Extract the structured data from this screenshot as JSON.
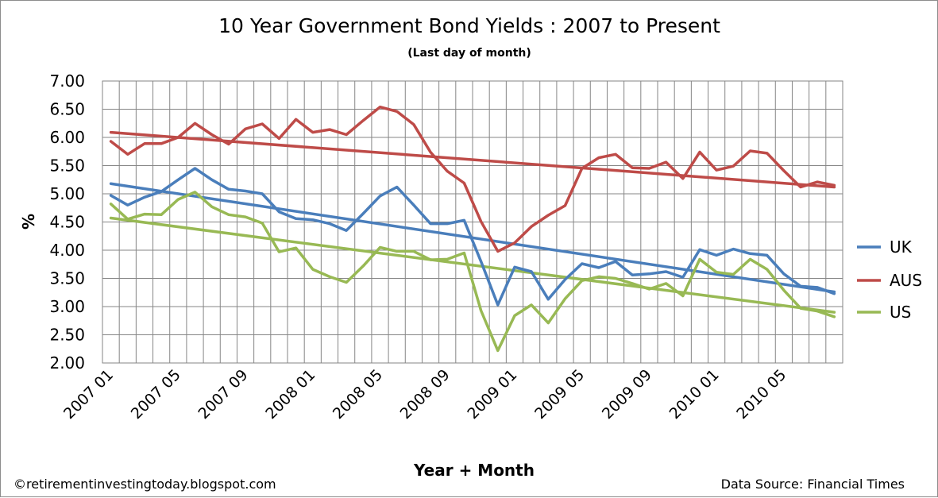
{
  "chart_data": {
    "type": "line",
    "title": "10 Year Government Bond Yields : 2007 to Present",
    "subtitle": "(Last day of month)",
    "xlabel": "Year + Month",
    "ylabel": "%",
    "ylim": [
      2.0,
      7.0
    ],
    "ytick_step": 0.5,
    "yticks": [
      "7.00",
      "6.50",
      "6.00",
      "5.50",
      "5.00",
      "4.50",
      "4.00",
      "3.50",
      "3.00",
      "2.50",
      "2.00"
    ],
    "x_tick_labels": [
      "2007 01",
      "2007 05",
      "2007 09",
      "2008 01",
      "2008 05",
      "2008 09",
      "2009 01",
      "2009 05",
      "2009 09",
      "2010 01",
      "2010 05"
    ],
    "tick_every": 4,
    "x": [
      "2007 01",
      "2007 02",
      "2007 03",
      "2007 04",
      "2007 05",
      "2007 06",
      "2007 07",
      "2007 08",
      "2007 09",
      "2007 10",
      "2007 11",
      "2007 12",
      "2008 01",
      "2008 02",
      "2008 03",
      "2008 04",
      "2008 05",
      "2008 06",
      "2008 07",
      "2008 08",
      "2008 09",
      "2008 10",
      "2008 11",
      "2008 12",
      "2009 01",
      "2009 02",
      "2009 03",
      "2009 04",
      "2009 05",
      "2009 06",
      "2009 07",
      "2009 08",
      "2009 09",
      "2009 10",
      "2009 11",
      "2009 12",
      "2010 01",
      "2010 02",
      "2010 03",
      "2010 04",
      "2010 05",
      "2010 06",
      "2010 07",
      "2010 08"
    ],
    "grid": true,
    "legend": "right",
    "series": [
      {
        "name": "UK",
        "color": "#4a7ebb",
        "values": [
          4.97,
          4.8,
          4.94,
          5.04,
          5.25,
          5.45,
          5.25,
          5.08,
          5.05,
          5.0,
          4.68,
          4.56,
          4.54,
          4.47,
          4.35,
          4.65,
          4.96,
          5.12,
          4.8,
          4.47,
          4.47,
          4.53,
          3.8,
          3.03,
          3.7,
          3.62,
          3.13,
          3.48,
          3.76,
          3.69,
          3.8,
          3.56,
          3.58,
          3.62,
          3.52,
          4.01,
          3.91,
          4.02,
          3.94,
          3.91,
          3.58,
          3.36,
          3.34,
          3.23
        ],
        "trend": [
          5.18,
          3.26
        ]
      },
      {
        "name": "AUS",
        "color": "#be4b48",
        "values": [
          5.93,
          5.7,
          5.89,
          5.89,
          6.0,
          6.25,
          6.05,
          5.88,
          6.15,
          6.24,
          5.98,
          6.32,
          6.09,
          6.14,
          6.05,
          6.3,
          6.54,
          6.46,
          6.23,
          5.74,
          5.4,
          5.19,
          4.51,
          3.98,
          4.13,
          4.42,
          4.62,
          4.79,
          5.45,
          5.64,
          5.7,
          5.46,
          5.45,
          5.56,
          5.27,
          5.74,
          5.42,
          5.49,
          5.76,
          5.72,
          5.41,
          5.12,
          5.21,
          5.15
        ],
        "trend": [
          6.09,
          5.12
        ]
      },
      {
        "name": "US",
        "color": "#98b954",
        "values": [
          4.82,
          4.55,
          4.64,
          4.63,
          4.9,
          5.03,
          4.77,
          4.63,
          4.59,
          4.48,
          3.97,
          4.04,
          3.66,
          3.53,
          3.43,
          3.72,
          4.05,
          3.98,
          3.98,
          3.83,
          3.84,
          3.95,
          2.93,
          2.22,
          2.84,
          3.03,
          2.71,
          3.14,
          3.46,
          3.53,
          3.5,
          3.41,
          3.31,
          3.41,
          3.19,
          3.84,
          3.61,
          3.57,
          3.84,
          3.66,
          3.29,
          2.97,
          2.92,
          2.82
        ],
        "trend": [
          4.57,
          2.9
        ]
      }
    ]
  },
  "footer": {
    "left": "©retirementinvestingtoday.blogspot.com",
    "right": "Data Source: Financial Times"
  }
}
